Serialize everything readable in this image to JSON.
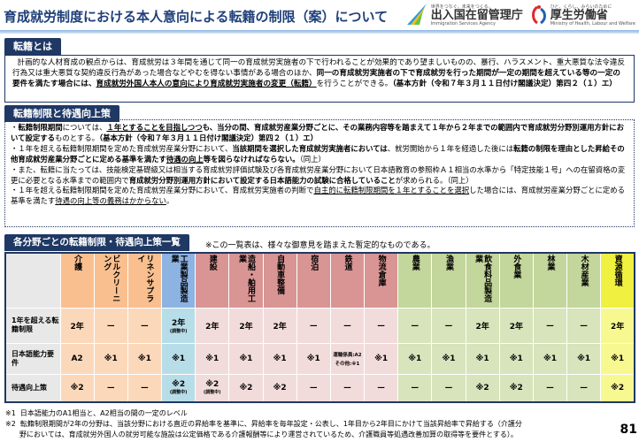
{
  "header": {
    "title": "育成就労制度における本人意向による転籍の制限（案）について",
    "logo_isa": {
      "tagline": "世界をつなぐ。未来をつくる。",
      "name": "出入国在留管理庁",
      "english": "Immigration Services Agency",
      "mark": "ISA"
    },
    "logo_mhlw": {
      "tagline": "ひと、くらし、みらいのために",
      "name": "厚生労働省",
      "english": "Ministry of Health, Labour and Welfare"
    }
  },
  "section1": {
    "tab": "転籍とは",
    "text_a": "計画的な人材育成の観点からは、育成就労は３年間を通じて同一の育成就労実施者の下で行われることが効果的であり望ましいものの、暴行、ハラスメント、重大悪質な法令違反行為又は重大悪質な契約違反行為があった場合などやむを得ない事情がある場合のほか、",
    "text_b": "同一の育成就労実施者の下で育成就労を行った期間が一定の期間を超えている等の一定の要件を満たす場合には、",
    "text_c": "育成就労外国人本人の意向により育成就労実施者の変更（転籍）",
    "text_d": "を行うことができる。",
    "text_e": "（基本方針（令和７年３月１１日付け閣議決定）第四２（１）エ）"
  },
  "section2": {
    "tab": "転籍制限と待遇向上策",
    "b1": [
      "・",
      "転籍制限期間",
      "については、",
      "１年とすることを目指しつつ",
      "も、当分の間、育成就労産業分野ごとに、その業務内容等を踏まえて１年から２年までの範囲内で育成就労分野別運用方針において設定する",
      "ものとする。",
      "（基本方針（令和７年３月１１日付け閣議決定）第四２（１）エ）"
    ],
    "b2": [
      "・１年を超える転籍制限期間を定めた育成就労産業分野において、",
      "当該期間を選択した育成就労実施者においては",
      "、就労開始から１年を経過した後には",
      "転籍の制限を理由とした昇給その他育成就労産業分野ごとに定める基準を満たす",
      "待遇の向上",
      "等を図らなければならない。",
      "（同上）"
    ],
    "b3": [
      "・また、転籍に当たっては、技能検定基礎級又は相当する育成就労評価試験及び各育成就労産業分野において日本語教育の参照枠Ａ１相当の水準から「特定技能１号」への在留資格の変更に必要となる水準までの範囲内で",
      "育成就労分野別運用方針において設定する日本語能力の試験に合格していること",
      "が求められる。（同上）"
    ],
    "b4": [
      "・１年を超える転籍制限期間を定めた育成就労産業分野において、育成就労実施者の判断で",
      "自主的に転籍制限期間を１年とすることを選択",
      "した場合には、育成就労産業分野ごとに定める基準を満たす",
      "待遇の向上等の義務はかからない",
      "。"
    ]
  },
  "section3": {
    "tab": "各分野ごとの転籍制限・待遇向上策一覧",
    "note": "※この一覧表は、様々な御意見を踏まえた暫定的なものである。",
    "row_headers": [
      "1年を超える転籍制限",
      "日本語能力要件",
      "待遇向上策"
    ],
    "columns": [
      {
        "name": "介護",
        "group": "orange",
        "r1": "2年",
        "r2": "A2",
        "r3": "※2"
      },
      {
        "name": "ビルクリーニング",
        "group": "orange",
        "r1": "ー",
        "r2": "※1",
        "r3": "ー"
      },
      {
        "name": "リネンサプライ",
        "group": "orange",
        "r1": "ー",
        "r2": "※1",
        "r3": "ー"
      },
      {
        "name": "工業製品製造業",
        "group": "blue",
        "r1": "2年",
        "r1_note": "(調整中)",
        "r2": "※1",
        "r3": "※2",
        "r3_note": "(調整中)"
      },
      {
        "name": "建設",
        "group": "red",
        "r1": "2年",
        "r2": "※1",
        "r3": "※2",
        "r3_note": "(調整中)"
      },
      {
        "name": "造船・舶用工業",
        "group": "red",
        "r1": "2年",
        "r2": "※1",
        "r3": "※2"
      },
      {
        "name": "自動車整備",
        "group": "red",
        "r1": "2年",
        "r2": "※1",
        "r3": "※2"
      },
      {
        "name": "宿泊",
        "group": "red",
        "r1": "ー",
        "r2": "※1",
        "r3": "ー"
      },
      {
        "name": "鉄道",
        "group": "red",
        "r1": "ー",
        "r2": "運輸係員:A2 その他:※1",
        "r3": "ー"
      },
      {
        "name": "物流倉庫",
        "group": "red",
        "r1": "ー",
        "r2": "※1",
        "r3": "ー"
      },
      {
        "name": "農業",
        "group": "green",
        "r1": "ー",
        "r2": "※1",
        "r3": "ー"
      },
      {
        "name": "漁業",
        "group": "green",
        "r1": "ー",
        "r2": "※1",
        "r3": "ー"
      },
      {
        "name": "飲食料品製造業",
        "group": "green",
        "r1": "2年",
        "r2": "※1",
        "r3": "※2"
      },
      {
        "name": "外食業",
        "group": "green",
        "r1": "2年",
        "r2": "※1",
        "r3": "※2"
      },
      {
        "name": "林業",
        "group": "green",
        "r1": "ー",
        "r2": "※1",
        "r3": "ー"
      },
      {
        "name": "木材産業",
        "group": "green",
        "r1": "ー",
        "r2": "※1",
        "r3": "ー"
      },
      {
        "name": "資源循環",
        "group": "yellow",
        "r1": "2年",
        "r2": "※1",
        "r3": "※2"
      }
    ],
    "colors": {
      "orange": [
        "#f9bf8f",
        "#fcd8bb"
      ],
      "blue": [
        "#8db3e2",
        "#b7dde8"
      ],
      "red": [
        "#d99594",
        "#f2dcdb"
      ],
      "green": [
        "#c3d69b",
        "#d7e4bc"
      ],
      "yellow": [
        "#f0f040",
        "#f8f890"
      ]
    }
  },
  "footnotes": [
    {
      "mark": "※1",
      "text": "日本語能力のA1相当と、A2相当の間の一定のレベル"
    },
    {
      "mark": "※2",
      "text": "転籍制限期間が2年の分野は、当該分野における直近の昇給率を基準に、昇給率を毎年設定・公表し、1年目から2年目にかけて当該昇給率で昇給する（介護分",
      "text2": "野においては、育成就労外国人の就労可能な施設は公定価格である介護報酬等により運営されているため、介護職員等処遇改善加算の取得等を要件とする）。"
    }
  ],
  "page_number": "81"
}
